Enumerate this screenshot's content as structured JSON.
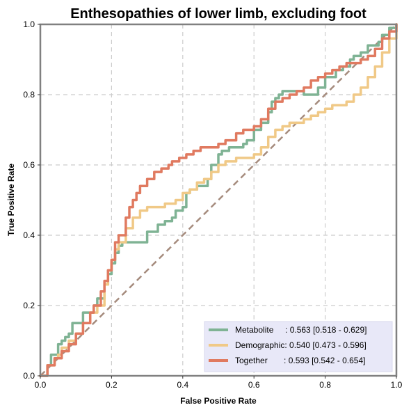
{
  "chart_data": {
    "type": "line",
    "title": "Enthesopathies of lower limb, excluding foot",
    "xlabel": "False Positive Rate",
    "ylabel": "True Positive Rate",
    "xlim": [
      0,
      1
    ],
    "ylim": [
      0,
      1
    ],
    "x_ticks": [
      "0.0",
      "0.2",
      "0.4",
      "0.6",
      "0.8",
      "1.0"
    ],
    "y_ticks": [
      "0.0",
      "0.2",
      "0.4",
      "0.6",
      "0.8",
      "1.0"
    ],
    "grid": true,
    "legend_position": "bottom-right",
    "diagonal": {
      "x": [
        0,
        1
      ],
      "y": [
        0,
        1
      ],
      "color": "#a58b7d"
    },
    "series": [
      {
        "name": "Metabolite",
        "legend_label": "Metabolite     : 0.563 [0.518 - 0.629]",
        "color": "#7fb394",
        "x": [
          0,
          0.02,
          0.03,
          0.05,
          0.06,
          0.07,
          0.08,
          0.09,
          0.1,
          0.12,
          0.13,
          0.15,
          0.16,
          0.18,
          0.19,
          0.2,
          0.21,
          0.22,
          0.23,
          0.24,
          0.28,
          0.3,
          0.33,
          0.35,
          0.37,
          0.38,
          0.4,
          0.41,
          0.42,
          0.44,
          0.45,
          0.47,
          0.48,
          0.5,
          0.51,
          0.52,
          0.53,
          0.56,
          0.57,
          0.58,
          0.6,
          0.62,
          0.64,
          0.65,
          0.66,
          0.67,
          0.68,
          0.7,
          0.72,
          0.74,
          0.75,
          0.76,
          0.78,
          0.8,
          0.83,
          0.85,
          0.87,
          0.88,
          0.9,
          0.92,
          0.93,
          0.95,
          0.96,
          0.98,
          1.0
        ],
        "y": [
          0,
          0.03,
          0.06,
          0.09,
          0.1,
          0.11,
          0.12,
          0.15,
          0.15,
          0.18,
          0.18,
          0.2,
          0.22,
          0.26,
          0.29,
          0.32,
          0.35,
          0.37,
          0.38,
          0.38,
          0.38,
          0.41,
          0.43,
          0.44,
          0.45,
          0.47,
          0.48,
          0.52,
          0.53,
          0.54,
          0.54,
          0.56,
          0.6,
          0.63,
          0.64,
          0.64,
          0.65,
          0.65,
          0.66,
          0.67,
          0.7,
          0.72,
          0.75,
          0.78,
          0.79,
          0.8,
          0.81,
          0.81,
          0.81,
          0.8,
          0.8,
          0.8,
          0.82,
          0.85,
          0.87,
          0.88,
          0.9,
          0.91,
          0.92,
          0.94,
          0.94,
          0.95,
          0.97,
          0.99,
          1.0
        ]
      },
      {
        "name": "Demographic",
        "legend_label": "Demographic: 0.540 [0.473 - 0.596]",
        "color": "#f0c987",
        "x": [
          0,
          0.02,
          0.04,
          0.05,
          0.06,
          0.08,
          0.1,
          0.12,
          0.14,
          0.16,
          0.18,
          0.19,
          0.2,
          0.21,
          0.22,
          0.24,
          0.26,
          0.28,
          0.3,
          0.32,
          0.35,
          0.38,
          0.4,
          0.42,
          0.44,
          0.46,
          0.48,
          0.5,
          0.52,
          0.55,
          0.58,
          0.6,
          0.62,
          0.64,
          0.66,
          0.68,
          0.7,
          0.72,
          0.74,
          0.76,
          0.78,
          0.8,
          0.82,
          0.84,
          0.86,
          0.88,
          0.9,
          0.92,
          0.94,
          0.96,
          0.98,
          1.0
        ],
        "y": [
          0,
          0.03,
          0.05,
          0.06,
          0.08,
          0.1,
          0.12,
          0.15,
          0.18,
          0.2,
          0.26,
          0.3,
          0.33,
          0.36,
          0.38,
          0.42,
          0.45,
          0.47,
          0.48,
          0.48,
          0.49,
          0.5,
          0.52,
          0.53,
          0.55,
          0.56,
          0.58,
          0.6,
          0.61,
          0.62,
          0.62,
          0.63,
          0.65,
          0.68,
          0.7,
          0.71,
          0.72,
          0.72,
          0.73,
          0.74,
          0.75,
          0.76,
          0.77,
          0.77,
          0.78,
          0.8,
          0.82,
          0.85,
          0.88,
          0.92,
          0.96,
          1.0
        ]
      },
      {
        "name": "Together",
        "legend_label": "Together       : 0.593 [0.542 - 0.654]",
        "color": "#e07a60",
        "x": [
          0,
          0.02,
          0.04,
          0.06,
          0.08,
          0.1,
          0.12,
          0.14,
          0.15,
          0.17,
          0.18,
          0.19,
          0.2,
          0.21,
          0.22,
          0.24,
          0.25,
          0.26,
          0.27,
          0.28,
          0.3,
          0.32,
          0.34,
          0.36,
          0.37,
          0.39,
          0.41,
          0.43,
          0.45,
          0.47,
          0.5,
          0.52,
          0.55,
          0.57,
          0.59,
          0.6,
          0.62,
          0.64,
          0.66,
          0.68,
          0.7,
          0.72,
          0.74,
          0.76,
          0.78,
          0.8,
          0.82,
          0.84,
          0.86,
          0.88,
          0.9,
          0.92,
          0.94,
          0.96,
          0.98,
          1.0
        ],
        "y": [
          0,
          0.03,
          0.05,
          0.07,
          0.09,
          0.12,
          0.15,
          0.18,
          0.2,
          0.24,
          0.27,
          0.3,
          0.33,
          0.38,
          0.4,
          0.45,
          0.48,
          0.5,
          0.52,
          0.54,
          0.56,
          0.58,
          0.59,
          0.6,
          0.61,
          0.62,
          0.63,
          0.64,
          0.65,
          0.65,
          0.66,
          0.67,
          0.69,
          0.7,
          0.7,
          0.71,
          0.73,
          0.76,
          0.78,
          0.79,
          0.8,
          0.81,
          0.82,
          0.84,
          0.85,
          0.86,
          0.87,
          0.88,
          0.89,
          0.89,
          0.9,
          0.91,
          0.93,
          0.96,
          0.98,
          1.0
        ]
      }
    ]
  }
}
